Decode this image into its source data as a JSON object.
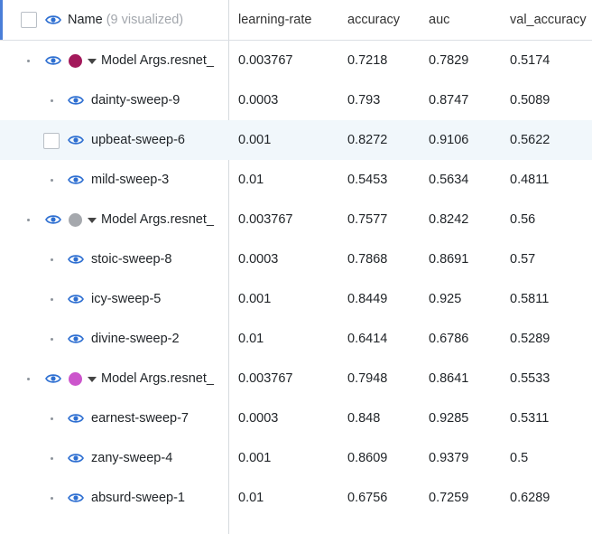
{
  "header": {
    "name_label": "Name",
    "name_hint": "(9 visualized)",
    "columns": [
      "learning-rate",
      "accuracy",
      "auc",
      "val_accuracy"
    ]
  },
  "colors": {
    "accent": "#4a7ed8",
    "eye": "#2e6fd1",
    "group1": "#a3195b",
    "group2": "#a5a8ad",
    "group3": "#cc55cc"
  },
  "rows": [
    {
      "kind": "group",
      "name": "Model Args.resnet_",
      "lr": "0.003767",
      "acc": "0.7218",
      "auc": "0.7829",
      "val": "0.5174"
    },
    {
      "kind": "run",
      "name": "dainty-sweep-9",
      "lr": "0.0003",
      "acc": "0.793",
      "auc": "0.8747",
      "val": "0.5089"
    },
    {
      "kind": "run-highlight",
      "name": "upbeat-sweep-6",
      "lr": "0.001",
      "acc": "0.8272",
      "auc": "0.9106",
      "val": "0.5622"
    },
    {
      "kind": "run",
      "name": "mild-sweep-3",
      "lr": "0.01",
      "acc": "0.5453",
      "auc": "0.5634",
      "val": "0.4811"
    },
    {
      "kind": "group",
      "name": "Model Args.resnet_",
      "lr": "0.003767",
      "acc": "0.7577",
      "auc": "0.8242",
      "val": "0.56"
    },
    {
      "kind": "run",
      "name": "stoic-sweep-8",
      "lr": "0.0003",
      "acc": "0.7868",
      "auc": "0.8691",
      "val": "0.57"
    },
    {
      "kind": "run",
      "name": "icy-sweep-5",
      "lr": "0.001",
      "acc": "0.8449",
      "auc": "0.925",
      "val": "0.5811"
    },
    {
      "kind": "run",
      "name": "divine-sweep-2",
      "lr": "0.01",
      "acc": "0.6414",
      "auc": "0.6786",
      "val": "0.5289"
    },
    {
      "kind": "group",
      "name": "Model Args.resnet_",
      "lr": "0.003767",
      "acc": "0.7948",
      "auc": "0.8641",
      "val": "0.5533"
    },
    {
      "kind": "run",
      "name": "earnest-sweep-7",
      "lr": "0.0003",
      "acc": "0.848",
      "auc": "0.9285",
      "val": "0.5311"
    },
    {
      "kind": "run",
      "name": "zany-sweep-4",
      "lr": "0.001",
      "acc": "0.8609",
      "auc": "0.9379",
      "val": "0.5"
    },
    {
      "kind": "run",
      "name": "absurd-sweep-1",
      "lr": "0.01",
      "acc": "0.6756",
      "auc": "0.7259",
      "val": "0.6289"
    }
  ]
}
